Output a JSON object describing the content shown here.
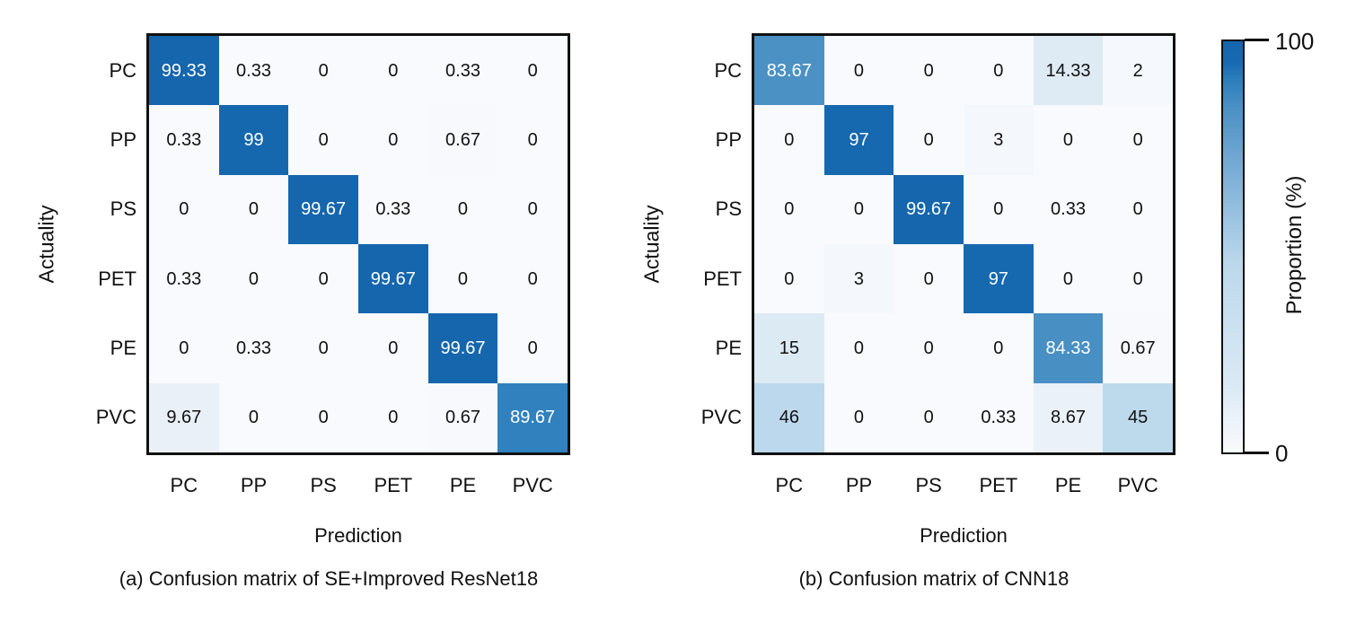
{
  "chart_data": [
    {
      "type": "heatmap",
      "title": "(a) Confusion matrix of SE+Improved ResNet18",
      "xlabel": "Prediction",
      "ylabel": "Actuality",
      "x_categories": [
        "PC",
        "PP",
        "PS",
        "PET",
        "PE",
        "PVC"
      ],
      "y_categories": [
        "PC",
        "PP",
        "PS",
        "PET",
        "PE",
        "PVC"
      ],
      "values": [
        [
          99.33,
          0.33,
          0,
          0,
          0.33,
          0
        ],
        [
          0.33,
          99,
          0,
          0,
          0.67,
          0
        ],
        [
          0,
          0,
          99.67,
          0.33,
          0,
          0
        ],
        [
          0.33,
          0,
          0,
          99.67,
          0,
          0
        ],
        [
          0,
          0.33,
          0,
          0,
          99.67,
          0
        ],
        [
          9.67,
          0,
          0,
          0,
          0.67,
          89.67
        ]
      ],
      "value_range": [
        0,
        100
      ],
      "grid": false,
      "legend": "shared-colorbar-right"
    },
    {
      "type": "heatmap",
      "title": "(b) Confusion matrix of CNN18",
      "xlabel": "Prediction",
      "ylabel": "Actuality",
      "x_categories": [
        "PC",
        "PP",
        "PS",
        "PET",
        "PE",
        "PVC"
      ],
      "y_categories": [
        "PC",
        "PP",
        "PS",
        "PET",
        "PE",
        "PVC"
      ],
      "values": [
        [
          83.67,
          0,
          0,
          0,
          14.33,
          2
        ],
        [
          0,
          97,
          0,
          3,
          0,
          0
        ],
        [
          0,
          0,
          99.67,
          0,
          0.33,
          0
        ],
        [
          0,
          3,
          0,
          97,
          0,
          0
        ],
        [
          15,
          0,
          0,
          0,
          84.33,
          0.67
        ],
        [
          46,
          0,
          0,
          0.33,
          8.67,
          45
        ]
      ],
      "value_range": [
        0,
        100
      ],
      "grid": false,
      "legend": "shared-colorbar-right"
    }
  ],
  "colorbar": {
    "label": "Proportion (%)",
    "max_tick": "100",
    "min_tick": "0",
    "range": [
      0,
      100
    ],
    "colormap_stops": [
      {
        "value": 0,
        "color": "#f8fafd"
      },
      {
        "value": 10,
        "color": "#e9f0f8"
      },
      {
        "value": 15,
        "color": "#dceaf4"
      },
      {
        "value": 46,
        "color": "#bcd8ec"
      },
      {
        "value": 84,
        "color": "#4a90c4"
      },
      {
        "value": 90,
        "color": "#2e80bd"
      },
      {
        "value": 95,
        "color": "#1769b0"
      },
      {
        "value": 100,
        "color": "#1566ad"
      }
    ],
    "cell_text_light": "#ffffff",
    "cell_text_dark": "#111111"
  }
}
